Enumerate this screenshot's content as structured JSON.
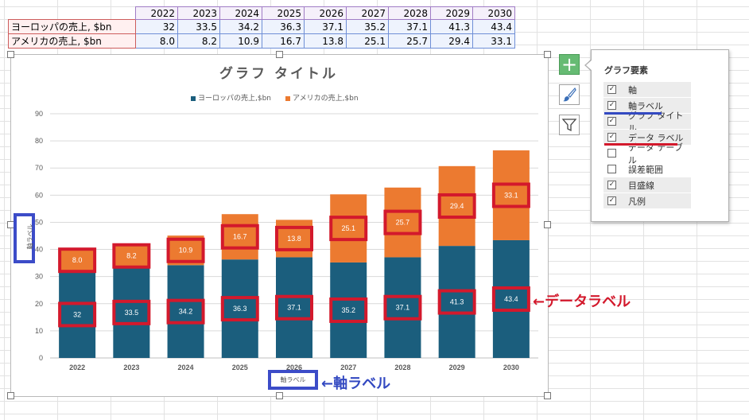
{
  "sheet": {
    "years": [
      "2022",
      "2023",
      "2024",
      "2025",
      "2026",
      "2027",
      "2028",
      "2029",
      "2030"
    ],
    "rows": [
      {
        "label": "ヨーロッパの売上, $bn",
        "values": [
          "32",
          "33.5",
          "34.2",
          "36.3",
          "37.1",
          "35.2",
          "37.1",
          "41.3",
          "43.4"
        ]
      },
      {
        "label": "アメリカの売上, $bn",
        "values": [
          "8.0",
          "8.2",
          "10.9",
          "16.7",
          "13.8",
          "25.1",
          "25.7",
          "29.4",
          "33.1"
        ]
      }
    ]
  },
  "chart_data": {
    "type": "bar",
    "stacked": true,
    "title": "グラフ タイトル",
    "xlabel": "軸ラベル",
    "ylabel": "軸ラベル",
    "categories": [
      "2022",
      "2023",
      "2024",
      "2025",
      "2026",
      "2027",
      "2028",
      "2029",
      "2030"
    ],
    "ylim": [
      0,
      90
    ],
    "yticks": [
      "0",
      "10",
      "20",
      "30",
      "40",
      "50",
      "60",
      "70",
      "80",
      "90"
    ],
    "grid": true,
    "legend_position": "top",
    "series": [
      {
        "name": "ヨーロッパの売上,$bn",
        "color": "#1b5e7d",
        "values": [
          32,
          33.5,
          34.2,
          36.3,
          37.1,
          35.2,
          37.1,
          41.3,
          43.4
        ],
        "labels": [
          "32",
          "33.5",
          "34.2",
          "36.3",
          "37.1",
          "35.2",
          "37.1",
          "41.3",
          "43.4"
        ]
      },
      {
        "name": "アメリカの売上,$bn",
        "color": "#ec7a30",
        "values": [
          8.0,
          8.2,
          10.9,
          16.7,
          13.8,
          25.1,
          25.7,
          29.4,
          33.1
        ],
        "labels": [
          "8.0",
          "8.2",
          "10.9",
          "16.7",
          "13.8",
          "25.1",
          "25.7",
          "29.4",
          "33.1"
        ]
      }
    ]
  },
  "annotations": {
    "axis_label_note": "←軸ラベル",
    "data_label_note": "←データラベル",
    "highlight_color": "#d3192c",
    "axis_box_color": "#3c4cc8"
  },
  "side_buttons": {
    "elements": "chart-elements-plus-icon",
    "styles": "brush-icon",
    "filters": "funnel-icon"
  },
  "panel": {
    "title": "グラフ要素",
    "items": [
      {
        "label": "軸",
        "checked": true
      },
      {
        "label": "軸ラベル",
        "checked": true
      },
      {
        "label": "グラフ タイトル",
        "checked": true
      },
      {
        "label": "データ ラベル",
        "checked": true
      },
      {
        "label": "データ テーブル",
        "checked": false
      },
      {
        "label": "誤差範囲",
        "checked": false
      },
      {
        "label": "目盛線",
        "checked": true
      },
      {
        "label": "凡例",
        "checked": true
      }
    ]
  }
}
